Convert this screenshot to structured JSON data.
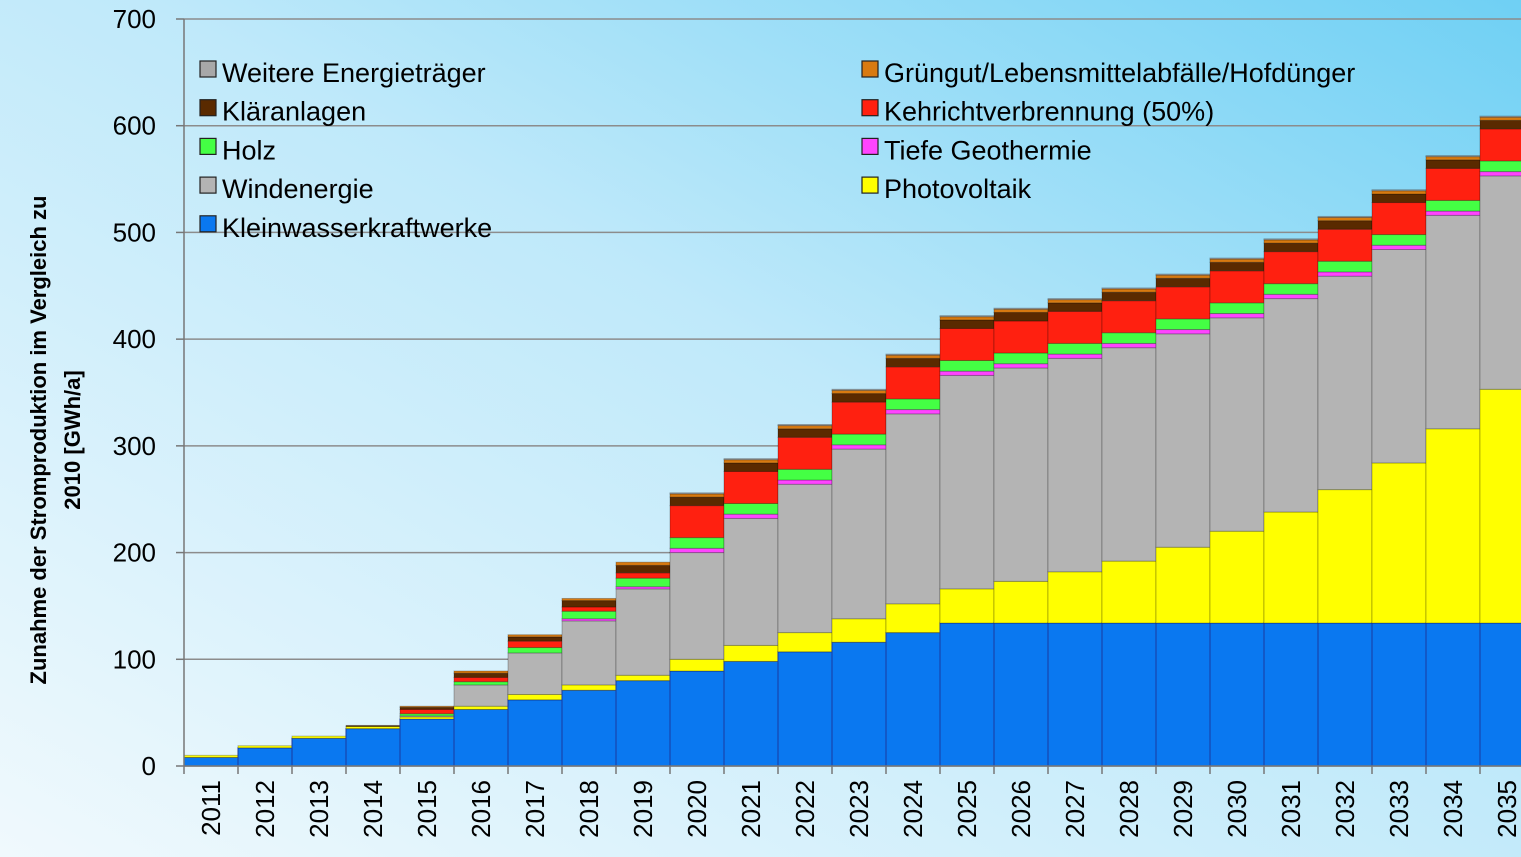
{
  "chart_data": {
    "type": "stacked_bar",
    "ylabel": [
      "Zunahme der Stromproduktion im Vergleich zu",
      "2010 [GWh/a]"
    ],
    "categories": [
      "2011",
      "2012",
      "2013",
      "2014",
      "2015",
      "2016",
      "2017",
      "2018",
      "2019",
      "2020",
      "2021",
      "2022",
      "2023",
      "2024",
      "2025",
      "2026",
      "2027",
      "2028",
      "2029",
      "2030",
      "2031",
      "2032",
      "2033",
      "2034",
      "2035"
    ],
    "ylim": [
      0,
      700
    ],
    "yticks": [
      0,
      100,
      200,
      300,
      400,
      500,
      600,
      700
    ],
    "grid": true,
    "series": [
      {
        "name": "Kleinwasserkraftwerke",
        "color": "#0a78f0",
        "values": [
          8,
          17,
          26,
          35,
          44,
          53,
          62,
          71,
          80,
          89,
          98,
          107,
          116,
          125,
          134,
          134,
          134,
          134,
          134,
          134,
          134,
          134,
          134,
          134,
          134
        ]
      },
      {
        "name": "Photovoltaik",
        "color": "#ffff00",
        "values": [
          2,
          2,
          2,
          2,
          2,
          3,
          5,
          5,
          5,
          11,
          15,
          18,
          22,
          27,
          32,
          39,
          48,
          58,
          71,
          86,
          104,
          125,
          150,
          182,
          219
        ]
      },
      {
        "name": "Windenergie",
        "color": "#b4b4b4",
        "values": [
          0,
          0,
          0,
          0,
          1,
          20,
          39,
          60,
          81,
          100,
          119,
          139,
          159,
          178,
          200,
          200,
          200,
          200,
          200,
          200,
          200,
          200,
          200,
          200,
          200
        ]
      },
      {
        "name": "Tiefe Geothermie",
        "color": "#ff44ff",
        "values": [
          0,
          0,
          0,
          0,
          0,
          0,
          0,
          2,
          2,
          4,
          4,
          4,
          4,
          4,
          4,
          4,
          4,
          4,
          4,
          4,
          4,
          4,
          4,
          4,
          4
        ]
      },
      {
        "name": "Holz",
        "color": "#44ff44",
        "values": [
          0,
          0,
          0,
          0,
          2,
          3,
          5,
          7,
          8,
          10,
          10,
          10,
          10,
          10,
          10,
          10,
          10,
          10,
          10,
          10,
          10,
          10,
          10,
          10,
          10
        ]
      },
      {
        "name": "Kehrichtverbrennung (50%)",
        "color": "#ff2010",
        "values": [
          0,
          0,
          0,
          0,
          4,
          4,
          6,
          4,
          5,
          30,
          30,
          30,
          30,
          30,
          30,
          30,
          30,
          30,
          30,
          30,
          30,
          30,
          30,
          30,
          30
        ]
      },
      {
        "name": "Kläranlagen",
        "color": "#5a2a00",
        "values": [
          0,
          0,
          0,
          1,
          2,
          4,
          4,
          6,
          7,
          8,
          8,
          8,
          8,
          8,
          8,
          8,
          8,
          8,
          8,
          8,
          8,
          8,
          8,
          8,
          8
        ]
      },
      {
        "name": "Grüngut/Lebensmittelabfälle/Hofdünger",
        "color": "#d87a10",
        "values": [
          0,
          0,
          0,
          0,
          1,
          2,
          2,
          2,
          3,
          3,
          3,
          3,
          3,
          3,
          3,
          3,
          3,
          3,
          3,
          3,
          3,
          3,
          3,
          3,
          3
        ]
      },
      {
        "name": "Weitere Energieträger",
        "color": "#a8a8a8",
        "values": [
          0,
          0,
          0,
          0,
          0,
          0,
          0,
          0,
          0,
          1,
          1,
          1,
          1,
          1,
          1,
          1,
          1,
          1,
          1,
          1,
          1,
          1,
          1,
          1,
          1
        ]
      }
    ]
  }
}
